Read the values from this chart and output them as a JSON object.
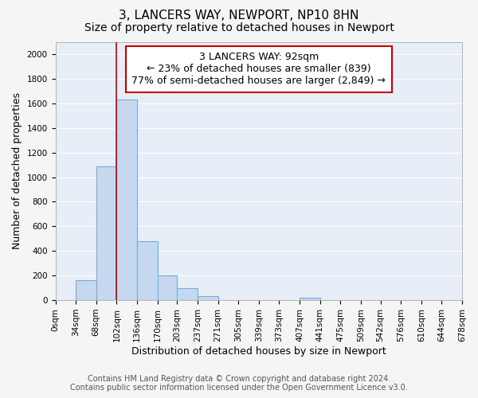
{
  "title": "3, LANCERS WAY, NEWPORT, NP10 8HN",
  "subtitle": "Size of property relative to detached houses in Newport",
  "xlabel": "Distribution of detached houses by size in Newport",
  "ylabel": "Number of detached properties",
  "annotation_line1": "3 LANCERS WAY: 92sqm",
  "annotation_line2": "← 23% of detached houses are smaller (839)",
  "annotation_line3": "77% of semi-detached houses are larger (2,849) →",
  "footnote1": "Contains HM Land Registry data © Crown copyright and database right 2024.",
  "footnote2": "Contains public sector information licensed under the Open Government Licence v3.0.",
  "property_size_sqm": 92,
  "bar_edges": [
    0,
    34,
    68,
    102,
    136,
    170,
    203,
    237,
    271,
    305,
    339,
    373,
    407,
    441,
    475,
    509,
    542,
    576,
    610,
    644,
    678
  ],
  "bar_heights": [
    0,
    165,
    1085,
    1630,
    480,
    200,
    100,
    35,
    0,
    0,
    0,
    0,
    20,
    0,
    0,
    0,
    0,
    0,
    0,
    0
  ],
  "bar_color": "#c5d8f0",
  "bar_edgecolor": "#7baad4",
  "vline_color": "#cc0000",
  "vline_x": 102,
  "ylim": [
    0,
    2100
  ],
  "yticks": [
    0,
    200,
    400,
    600,
    800,
    1000,
    1200,
    1400,
    1600,
    1800,
    2000
  ],
  "xtick_labels": [
    "0sqm",
    "34sqm",
    "68sqm",
    "102sqm",
    "136sqm",
    "170sqm",
    "203sqm",
    "237sqm",
    "271sqm",
    "305sqm",
    "339sqm",
    "373sqm",
    "407sqm",
    "441sqm",
    "475sqm",
    "509sqm",
    "542sqm",
    "576sqm",
    "610sqm",
    "644sqm",
    "678sqm"
  ],
  "fig_bg_color": "#f5f5f5",
  "plot_bg_color": "#e8eef8",
  "grid_color": "#ffffff",
  "annotation_box_facecolor": "#ffffff",
  "annotation_box_edgecolor": "#cc0000",
  "title_fontsize": 11,
  "subtitle_fontsize": 10,
  "xlabel_fontsize": 9,
  "ylabel_fontsize": 9,
  "annotation_fontsize": 9,
  "tick_fontsize": 7.5,
  "footnote_fontsize": 7
}
